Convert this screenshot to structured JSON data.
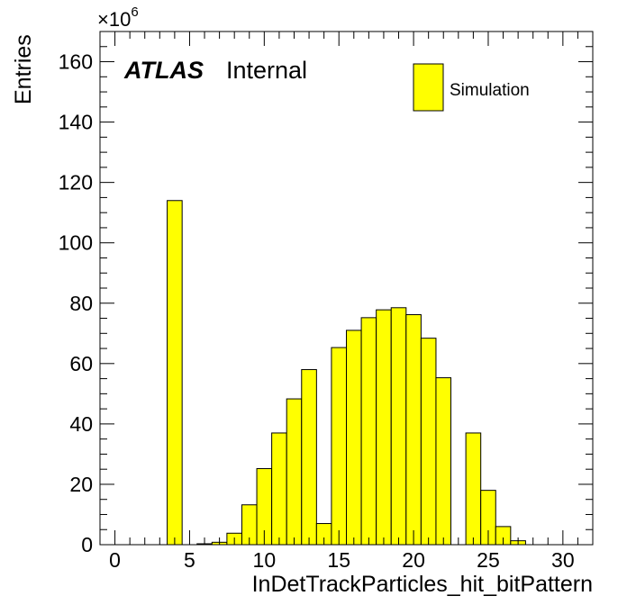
{
  "chart_data": {
    "type": "bar",
    "histogram": true,
    "bin_width": 1,
    "bins": [
      {
        "x": 0,
        "value": 0
      },
      {
        "x": 1,
        "value": 0
      },
      {
        "x": 2,
        "value": 0
      },
      {
        "x": 3,
        "value": 0
      },
      {
        "x": 4,
        "value": 114
      },
      {
        "x": 5,
        "value": 0
      },
      {
        "x": 6,
        "value": 0.3
      },
      {
        "x": 7,
        "value": 0.8
      },
      {
        "x": 8,
        "value": 3.8
      },
      {
        "x": 9,
        "value": 13.2
      },
      {
        "x": 10,
        "value": 25.2
      },
      {
        "x": 11,
        "value": 37
      },
      {
        "x": 12,
        "value": 48.3
      },
      {
        "x": 13,
        "value": 58
      },
      {
        "x": 14,
        "value": 7
      },
      {
        "x": 15,
        "value": 65.3
      },
      {
        "x": 16,
        "value": 71
      },
      {
        "x": 17,
        "value": 75.2
      },
      {
        "x": 18,
        "value": 77.8
      },
      {
        "x": 19,
        "value": 78.5
      },
      {
        "x": 20,
        "value": 76.2
      },
      {
        "x": 21,
        "value": 68.4
      },
      {
        "x": 22,
        "value": 55.3
      },
      {
        "x": 23,
        "value": 0
      },
      {
        "x": 24,
        "value": 37
      },
      {
        "x": 25,
        "value": 18
      },
      {
        "x": 26,
        "value": 6
      },
      {
        "x": 27,
        "value": 1.3
      },
      {
        "x": 28,
        "value": 0
      },
      {
        "x": 29,
        "value": 0
      },
      {
        "x": 30,
        "value": 0
      },
      {
        "x": 31,
        "value": 0
      }
    ],
    "xlim": [
      -1,
      32
    ],
    "ylim": [
      0,
      170
    ],
    "xticks": [
      0,
      5,
      10,
      15,
      20,
      25,
      30
    ],
    "xtick_labels": [
      "0",
      "5",
      "10",
      "15",
      "20",
      "25",
      "30"
    ],
    "yticks": [
      0,
      20,
      40,
      60,
      80,
      100,
      120,
      140,
      160
    ],
    "ytick_labels": [
      "0",
      "20",
      "40",
      "60",
      "80",
      "100",
      "120",
      "140",
      "160"
    ],
    "xlabel": "InDetTrackParticles_hit_bitPattern",
    "ylabel": "Entries",
    "y_multiplier_base": "×10",
    "y_multiplier_exp": "6",
    "atlas_label": "ATLAS",
    "atlas_status": "Internal",
    "legend": [
      {
        "name": "Simulation",
        "color": "#ffff00"
      }
    ],
    "legend_position": "top-right",
    "fill_color": "#ffff00",
    "line_color": "#000000"
  }
}
